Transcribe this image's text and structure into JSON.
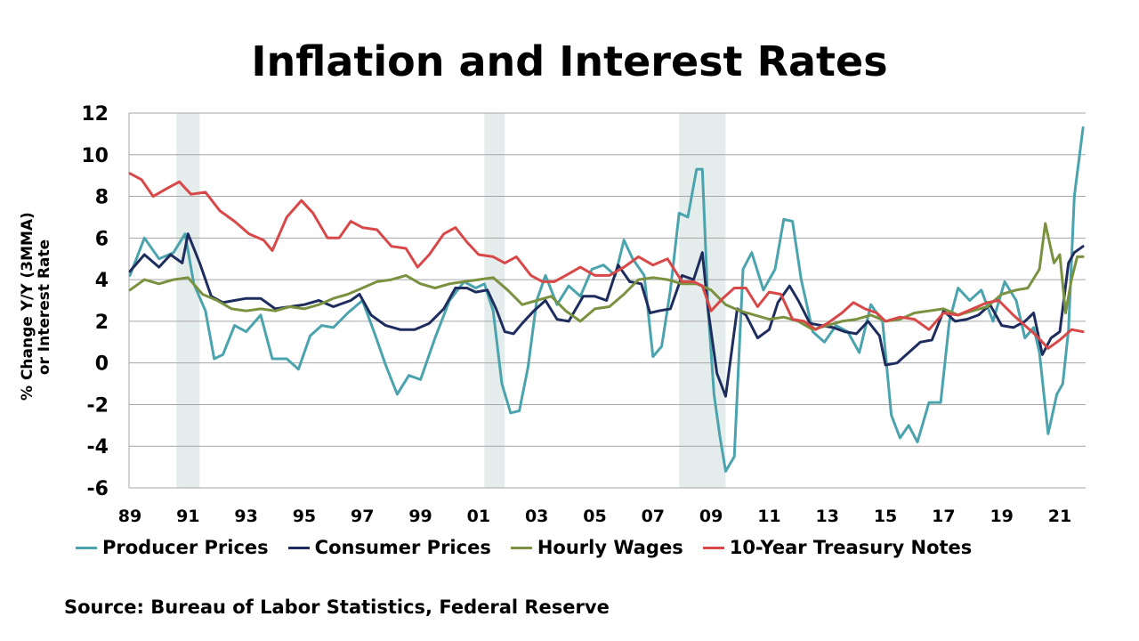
{
  "chart_data": {
    "type": "line",
    "title": "Inflation and Interest Rates",
    "ylabel_line1": "% Change Y/Y (3MMA)",
    "ylabel_line2": "or Interest Rate",
    "ylim": [
      -6,
      12
    ],
    "yticks": [
      12,
      10,
      8,
      6,
      4,
      2,
      0,
      -2,
      -4,
      -6
    ],
    "xlim": [
      1989,
      2021.8
    ],
    "xticks": [
      {
        "year": 1989,
        "label": "89"
      },
      {
        "year": 1991,
        "label": "91"
      },
      {
        "year": 1993,
        "label": "93"
      },
      {
        "year": 1995,
        "label": "95"
      },
      {
        "year": 1997,
        "label": "97"
      },
      {
        "year": 1999,
        "label": "99"
      },
      {
        "year": 2001,
        "label": "01"
      },
      {
        "year": 2003,
        "label": "03"
      },
      {
        "year": 2005,
        "label": "05"
      },
      {
        "year": 2007,
        "label": "07"
      },
      {
        "year": 2009,
        "label": "09"
      },
      {
        "year": 2011,
        "label": "11"
      },
      {
        "year": 2013,
        "label": "13"
      },
      {
        "year": 2015,
        "label": "15"
      },
      {
        "year": 2017,
        "label": "17"
      },
      {
        "year": 2019,
        "label": "19"
      },
      {
        "year": 2021,
        "label": "21"
      }
    ],
    "recessions": [
      [
        1990.6,
        1991.4
      ],
      [
        2001.2,
        2001.9
      ],
      [
        2007.9,
        2009.5
      ]
    ],
    "grid": true,
    "legend_position": "bottom",
    "series": [
      {
        "name": "Producer Prices",
        "color": "#4BA3AE",
        "x": [
          1989.0,
          1989.5,
          1990.0,
          1990.5,
          1990.9,
          1991.2,
          1991.6,
          1991.9,
          1992.2,
          1992.6,
          1993.0,
          1993.5,
          1993.9,
          1994.4,
          1994.8,
          1995.2,
          1995.6,
          1996.0,
          1996.5,
          1997.0,
          1997.4,
          1997.8,
          1998.2,
          1998.6,
          1999.0,
          1999.5,
          2000.0,
          2000.5,
          2000.9,
          2001.2,
          2001.5,
          2001.8,
          2002.1,
          2002.4,
          2002.7,
          2003.0,
          2003.3,
          2003.7,
          2004.1,
          2004.5,
          2004.9,
          2005.3,
          2005.7,
          2006.0,
          2006.3,
          2006.7,
          2007.0,
          2007.3,
          2007.6,
          2007.9,
          2008.2,
          2008.5,
          2008.7,
          2008.9,
          2009.1,
          2009.3,
          2009.5,
          2009.8,
          2010.1,
          2010.4,
          2010.8,
          2011.2,
          2011.5,
          2011.8,
          2012.1,
          2012.5,
          2012.9,
          2013.3,
          2013.7,
          2014.1,
          2014.5,
          2014.9,
          2015.2,
          2015.5,
          2015.8,
          2016.1,
          2016.5,
          2016.9,
          2017.2,
          2017.5,
          2017.9,
          2018.3,
          2018.7,
          2019.1,
          2019.5,
          2019.8,
          2020.1,
          2020.3,
          2020.6,
          2020.9,
          2021.1,
          2021.3,
          2021.5,
          2021.8
        ],
        "values": [
          4.2,
          6.0,
          5.0,
          5.3,
          6.2,
          3.8,
          2.5,
          0.2,
          0.4,
          1.8,
          1.5,
          2.3,
          0.2,
          0.2,
          -0.3,
          1.3,
          1.8,
          1.7,
          2.4,
          3.0,
          1.5,
          -0.1,
          -1.5,
          -0.6,
          -0.8,
          1.2,
          3.0,
          3.9,
          3.6,
          3.8,
          2.5,
          -1.0,
          -2.4,
          -2.3,
          -0.2,
          3.0,
          4.2,
          2.8,
          3.7,
          3.2,
          4.5,
          4.7,
          4.2,
          5.9,
          5.0,
          4.2,
          0.3,
          0.8,
          3.5,
          7.2,
          7.0,
          9.3,
          9.3,
          2.5,
          -1.5,
          -3.5,
          -5.2,
          -4.5,
          4.5,
          5.3,
          3.5,
          4.5,
          6.9,
          6.8,
          4.0,
          1.5,
          1.0,
          1.8,
          1.5,
          0.5,
          2.8,
          2.0,
          -2.5,
          -3.6,
          -3.0,
          -3.8,
          -1.9,
          -1.9,
          2.0,
          3.6,
          3.0,
          3.5,
          2.0,
          3.9,
          3.0,
          1.2,
          1.7,
          0.5,
          -3.4,
          -1.5,
          -1.0,
          1.6,
          8.0,
          11.3
        ]
      },
      {
        "name": "Consumer Prices",
        "color": "#1E2D5E",
        "x": [
          1989.0,
          1989.5,
          1990.0,
          1990.4,
          1990.8,
          1991.0,
          1991.4,
          1991.8,
          1992.2,
          1993.0,
          1993.5,
          1994.0,
          1994.5,
          1995.0,
          1995.5,
          1996.0,
          1996.6,
          1996.9,
          1997.3,
          1997.8,
          1998.3,
          1998.8,
          1999.3,
          1999.8,
          2000.2,
          2000.6,
          2000.9,
          2001.3,
          2001.6,
          2001.9,
          2002.2,
          2002.5,
          2002.9,
          2003.3,
          2003.7,
          2004.1,
          2004.6,
          2005.0,
          2005.4,
          2005.8,
          2006.2,
          2006.6,
          2006.9,
          2007.2,
          2007.6,
          2008.0,
          2008.4,
          2008.7,
          2008.9,
          2009.2,
          2009.5,
          2009.9,
          2010.2,
          2010.6,
          2011.0,
          2011.3,
          2011.7,
          2012.0,
          2012.4,
          2012.8,
          2013.2,
          2013.6,
          2014.0,
          2014.4,
          2014.8,
          2015.0,
          2015.4,
          2015.8,
          2016.2,
          2016.6,
          2017.0,
          2017.4,
          2017.8,
          2018.2,
          2018.6,
          2019.0,
          2019.4,
          2019.8,
          2020.1,
          2020.4,
          2020.7,
          2021.0,
          2021.3,
          2021.5,
          2021.8
        ],
        "values": [
          4.4,
          5.2,
          4.6,
          5.2,
          4.8,
          6.2,
          4.8,
          3.2,
          2.9,
          3.1,
          3.1,
          2.6,
          2.7,
          2.8,
          3.0,
          2.7,
          3.0,
          3.3,
          2.3,
          1.8,
          1.6,
          1.6,
          1.9,
          2.6,
          3.6,
          3.6,
          3.4,
          3.5,
          2.6,
          1.5,
          1.4,
          1.9,
          2.5,
          3.0,
          2.1,
          2.0,
          3.2,
          3.2,
          3.0,
          4.7,
          3.9,
          3.8,
          2.4,
          2.5,
          2.6,
          4.2,
          4.0,
          5.3,
          2.5,
          -0.5,
          -1.6,
          2.6,
          2.3,
          1.2,
          1.6,
          2.9,
          3.7,
          3.0,
          1.9,
          1.8,
          1.7,
          1.5,
          1.4,
          2.0,
          1.3,
          -0.1,
          0.0,
          0.5,
          1.0,
          1.1,
          2.5,
          2.0,
          2.1,
          2.3,
          2.8,
          1.8,
          1.7,
          2.0,
          2.4,
          0.4,
          1.2,
          1.5,
          4.8,
          5.3,
          5.6
        ]
      },
      {
        "name": "Hourly Wages",
        "color": "#7A9140",
        "x": [
          1989.0,
          1989.5,
          1990.0,
          1990.5,
          1991.0,
          1991.5,
          1992.0,
          1992.5,
          1993.0,
          1993.5,
          1994.0,
          1994.5,
          1995.0,
          1995.5,
          1996.0,
          1996.5,
          1997.0,
          1997.5,
          1998.0,
          1998.5,
          1999.0,
          1999.5,
          2000.0,
          2000.5,
          2001.0,
          2001.5,
          2002.0,
          2002.5,
          2003.0,
          2003.5,
          2004.0,
          2004.5,
          2005.0,
          2005.5,
          2006.0,
          2006.5,
          2007.0,
          2007.5,
          2008.0,
          2008.5,
          2009.0,
          2009.5,
          2010.0,
          2010.5,
          2011.0,
          2011.5,
          2012.0,
          2012.5,
          2013.0,
          2013.5,
          2014.0,
          2014.5,
          2015.0,
          2015.5,
          2016.0,
          2016.5,
          2017.0,
          2017.5,
          2018.0,
          2018.5,
          2019.0,
          2019.5,
          2019.9,
          2020.3,
          2020.5,
          2020.8,
          2021.0,
          2021.2,
          2021.4,
          2021.6,
          2021.8
        ],
        "values": [
          3.5,
          4.0,
          3.8,
          4.0,
          4.1,
          3.3,
          3.0,
          2.6,
          2.5,
          2.6,
          2.5,
          2.7,
          2.6,
          2.8,
          3.1,
          3.3,
          3.6,
          3.9,
          4.0,
          4.2,
          3.8,
          3.6,
          3.8,
          3.9,
          4.0,
          4.1,
          3.5,
          2.8,
          3.0,
          3.2,
          2.5,
          2.0,
          2.6,
          2.7,
          3.3,
          4.0,
          4.1,
          4.0,
          3.8,
          3.8,
          3.5,
          2.8,
          2.5,
          2.3,
          2.1,
          2.2,
          2.0,
          1.6,
          1.8,
          2.0,
          2.1,
          2.3,
          2.0,
          2.1,
          2.4,
          2.5,
          2.6,
          2.3,
          2.5,
          2.7,
          3.3,
          3.5,
          3.6,
          4.5,
          6.7,
          4.8,
          5.2,
          2.4,
          4.0,
          5.1,
          5.1
        ]
      },
      {
        "name": "10-Year Treasury Notes",
        "color": "#D94848",
        "x": [
          1989.0,
          1989.4,
          1989.8,
          1990.3,
          1990.7,
          1991.1,
          1991.6,
          1992.1,
          1992.6,
          1993.1,
          1993.6,
          1993.9,
          1994.4,
          1994.9,
          1995.3,
          1995.8,
          1996.2,
          1996.6,
          1997.0,
          1997.5,
          1998.0,
          1998.5,
          1998.9,
          1999.3,
          1999.8,
          2000.2,
          2000.6,
          2001.0,
          2001.5,
          2001.9,
          2002.3,
          2002.8,
          2003.2,
          2003.6,
          2004.0,
          2004.5,
          2005.0,
          2005.5,
          2006.0,
          2006.5,
          2007.0,
          2007.5,
          2008.0,
          2008.4,
          2008.7,
          2009.0,
          2009.4,
          2009.8,
          2010.2,
          2010.6,
          2011.0,
          2011.4,
          2011.8,
          2012.2,
          2012.6,
          2013.0,
          2013.5,
          2013.9,
          2014.3,
          2014.7,
          2015.0,
          2015.5,
          2016.0,
          2016.5,
          2017.0,
          2017.5,
          2018.0,
          2018.5,
          2018.9,
          2019.4,
          2019.8,
          2020.2,
          2020.6,
          2021.0,
          2021.4,
          2021.8
        ],
        "values": [
          9.1,
          8.8,
          8.0,
          8.4,
          8.7,
          8.1,
          8.2,
          7.3,
          6.8,
          6.2,
          5.9,
          5.4,
          7.0,
          7.8,
          7.2,
          6.0,
          6.0,
          6.8,
          6.5,
          6.4,
          5.6,
          5.5,
          4.6,
          5.2,
          6.2,
          6.5,
          5.8,
          5.2,
          5.1,
          4.8,
          5.1,
          4.2,
          3.9,
          3.9,
          4.2,
          4.6,
          4.2,
          4.2,
          4.6,
          5.1,
          4.7,
          5.0,
          3.9,
          3.9,
          3.7,
          2.5,
          3.1,
          3.6,
          3.6,
          2.7,
          3.4,
          3.3,
          2.1,
          2.0,
          1.6,
          1.9,
          2.4,
          2.9,
          2.6,
          2.4,
          2.0,
          2.2,
          2.1,
          1.6,
          2.4,
          2.3,
          2.6,
          2.9,
          3.0,
          2.3,
          1.8,
          1.3,
          0.7,
          1.1,
          1.6,
          1.5
        ]
      }
    ]
  },
  "source_text": "Source: Bureau of Labor Statistics, Federal Reserve"
}
